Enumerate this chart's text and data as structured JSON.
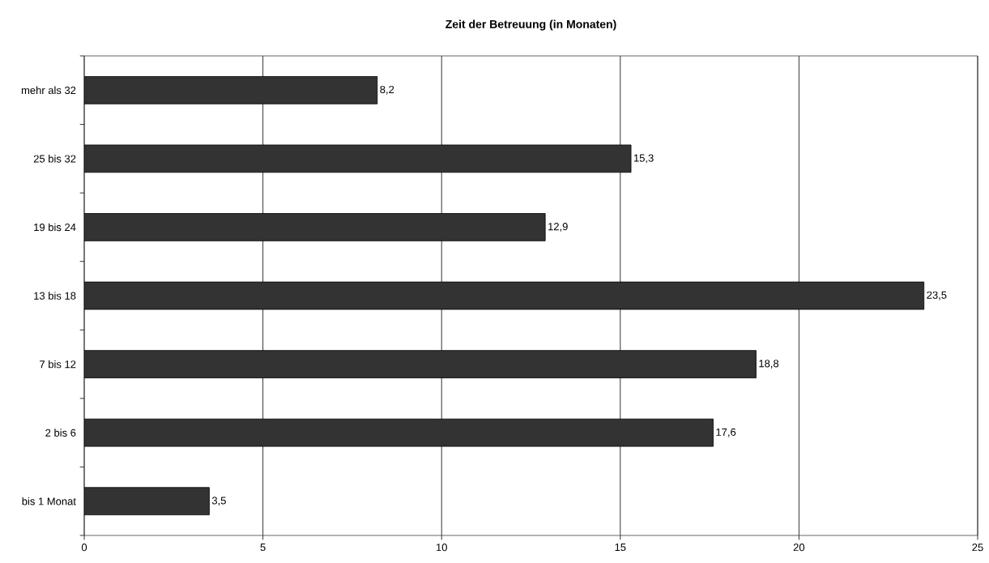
{
  "chart_data": {
    "type": "bar",
    "orientation": "horizontal",
    "title": "Zeit der Betreuung (in Monaten)",
    "categories": [
      "mehr als 32",
      "25 bis 32",
      "19 bis 24",
      "13 bis 18",
      "7 bis 12",
      "2 bis 6",
      "bis 1 Monat"
    ],
    "values": [
      8.2,
      15.3,
      12.9,
      23.5,
      18.8,
      17.6,
      3.5
    ],
    "value_labels": [
      "8,2",
      "15,3",
      "12,9",
      "23,5",
      "18,8",
      "17,6",
      "3,5"
    ],
    "color": "#333333",
    "xlim": [
      0,
      25
    ],
    "xticks": [
      0,
      5,
      10,
      15,
      20,
      25
    ],
    "grid": "x"
  }
}
